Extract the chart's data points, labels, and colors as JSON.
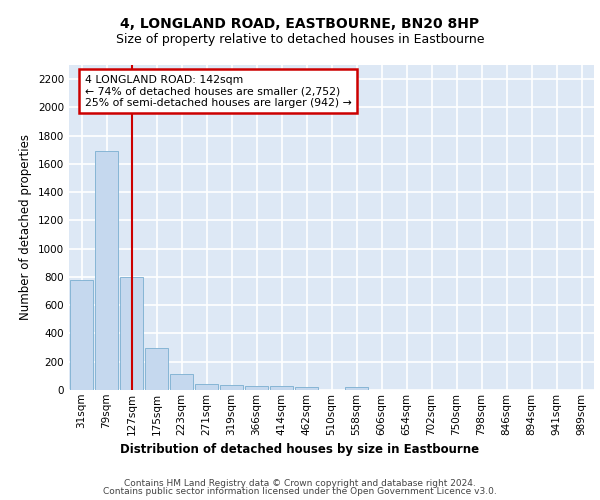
{
  "title": "4, LONGLAND ROAD, EASTBOURNE, BN20 8HP",
  "subtitle": "Size of property relative to detached houses in Eastbourne",
  "xlabel": "Distribution of detached houses by size in Eastbourne",
  "ylabel": "Number of detached properties",
  "footer_line1": "Contains HM Land Registry data © Crown copyright and database right 2024.",
  "footer_line2": "Contains public sector information licensed under the Open Government Licence v3.0.",
  "categories": [
    "31sqm",
    "79sqm",
    "127sqm",
    "175sqm",
    "223sqm",
    "271sqm",
    "319sqm",
    "366sqm",
    "414sqm",
    "462sqm",
    "510sqm",
    "558sqm",
    "606sqm",
    "654sqm",
    "702sqm",
    "750sqm",
    "798sqm",
    "846sqm",
    "894sqm",
    "941sqm",
    "989sqm"
  ],
  "values": [
    775,
    1690,
    800,
    300,
    110,
    45,
    35,
    30,
    25,
    20,
    0,
    20,
    0,
    0,
    0,
    0,
    0,
    0,
    0,
    0,
    0
  ],
  "bar_color": "#c5d8ee",
  "bar_edge_color": "#7aaed0",
  "red_line_index": 2,
  "annotation_text": "4 LONGLAND ROAD: 142sqm\n← 74% of detached houses are smaller (2,752)\n25% of semi-detached houses are larger (942) →",
  "annotation_box_color": "#ffffff",
  "annotation_box_edge": "#cc0000",
  "ylim": [
    0,
    2300
  ],
  "yticks": [
    0,
    200,
    400,
    600,
    800,
    1000,
    1200,
    1400,
    1600,
    1800,
    2000,
    2200
  ],
  "background_color": "#dde8f5",
  "grid_color": "#ffffff",
  "title_fontsize": 10,
  "subtitle_fontsize": 9,
  "axis_label_fontsize": 8.5,
  "tick_fontsize": 7.5,
  "footer_fontsize": 6.5
}
